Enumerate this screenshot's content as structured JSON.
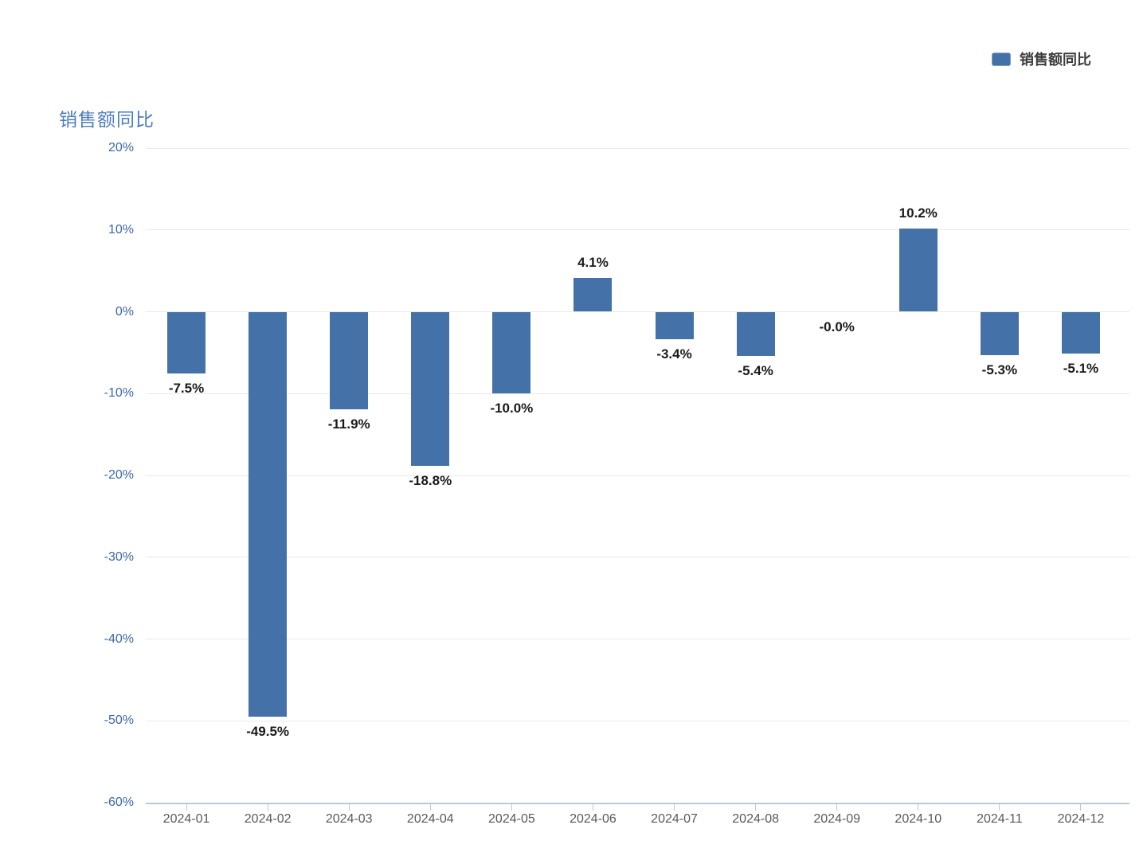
{
  "title": {
    "text": "销售额同比"
  },
  "legend": {
    "label": "销售额同比"
  },
  "colors": {
    "background": "#ffffff",
    "bar": "#4472a8",
    "title": "#4d7cbe",
    "axis_label": "#3a67ad",
    "x_label": "#595959",
    "data_label": "#1a1a1a",
    "grid_line": "#e9e9e9",
    "axis_line": "#b9c9dc",
    "legend_text": "#3c3c3c",
    "legend_marker_border": "#7d9cc7"
  },
  "chart_data": {
    "type": "bar",
    "title": "销售额同比",
    "xlabel": "",
    "ylabel": "",
    "ylim": [
      -60,
      20
    ],
    "grid": true,
    "legend_position": "top-right",
    "categories": [
      "2024-01",
      "2024-02",
      "2024-03",
      "2024-04",
      "2024-05",
      "2024-06",
      "2024-07",
      "2024-08",
      "2024-09",
      "2024-10",
      "2024-11",
      "2024-12"
    ],
    "series": [
      {
        "name": "销售额同比",
        "values": [
          -7.5,
          -49.5,
          -11.9,
          -18.8,
          -10.0,
          4.1,
          -3.4,
          -5.4,
          -0.0,
          10.2,
          -5.3,
          -5.1
        ]
      }
    ],
    "data_labels": [
      "-7.5%",
      "-49.5%",
      "-11.9%",
      "-18.8%",
      "-10.0%",
      "4.1%",
      "-3.4%",
      "-5.4%",
      "-0.0%",
      "10.2%",
      "-5.3%",
      "-5.1%"
    ],
    "y_ticks": [
      {
        "value": 20,
        "label": "20%"
      },
      {
        "value": 10,
        "label": "10%"
      },
      {
        "value": 0,
        "label": "0%"
      },
      {
        "value": -10,
        "label": "-10%"
      },
      {
        "value": -20,
        "label": "-20%"
      },
      {
        "value": -30,
        "label": "-30%"
      },
      {
        "value": -40,
        "label": "-40%"
      },
      {
        "value": -50,
        "label": "-50%"
      },
      {
        "value": -60,
        "label": "-60%"
      }
    ]
  }
}
